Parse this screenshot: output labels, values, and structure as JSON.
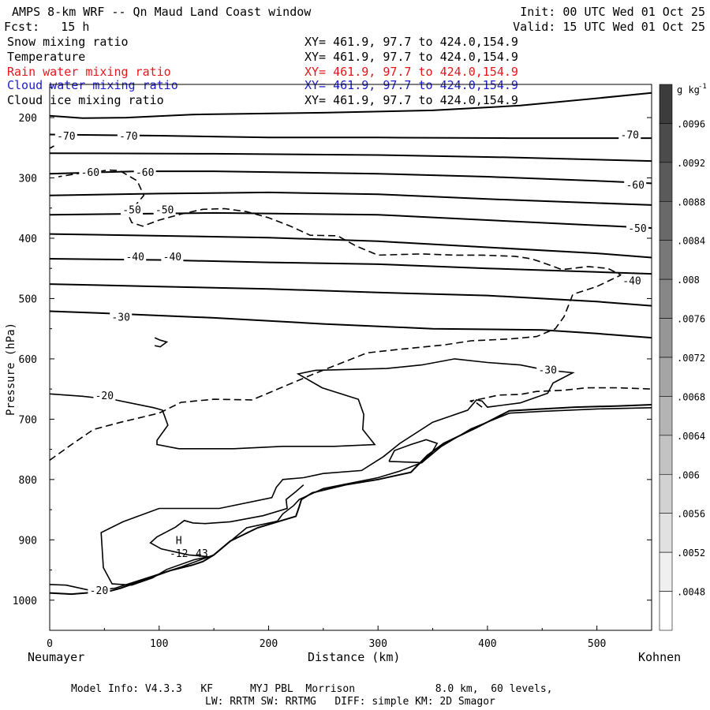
{
  "header": {
    "title": "AMPS 8-km WRF -- Qn Maud Land Coast window",
    "init": "Init: 00 UTC Wed 01 Oct 25",
    "fcst": "Fcst:   15 h",
    "valid": "Valid: 15 UTC Wed 01 Oct 25"
  },
  "fields": [
    {
      "name": "Snow mixing ratio",
      "xy": "XY= 461.9, 97.7 to 424.0,154.9",
      "color": "#000000"
    },
    {
      "name": "Temperature",
      "xy": "XY= 461.9, 97.7 to 424.0,154.9",
      "color": "#000000"
    },
    {
      "name": "Rain water mixing ratio",
      "xy": "XY= 461.9, 97.7 to 424.0,154.9",
      "color": "#e8141c"
    },
    {
      "name": "Cloud water mixing ratio",
      "xy": "XY= 461.9, 97.7 to 424.0,154.9",
      "color": "#1c1cc8"
    },
    {
      "name": "Cloud ice mixing ratio",
      "xy": "XY= 461.9, 97.7 to 424.0,154.9",
      "color": "#000000"
    }
  ],
  "footer": {
    "model_info": "Model Info: V4.3.3   KF      MYJ PBL  Morrison             8.0 km,  60 levels,",
    "model_info2": "LW: RRTM SW: RRTMG   DIFF: simple KM: 2D Smagor"
  },
  "chart_data": {
    "type": "cross-section contour",
    "xlabel": "Distance (km)",
    "ylabel": "Pressure (hPa)",
    "xlim": [
      0,
      550
    ],
    "ylim": [
      1050,
      145
    ],
    "x_ticks": [
      0,
      100,
      200,
      300,
      400,
      500
    ],
    "y_ticks": [
      200,
      300,
      400,
      500,
      600,
      700,
      800,
      900,
      1000
    ],
    "left_end_label": "Neumayer",
    "right_end_label": "Kohnen",
    "colorbar": {
      "unit": "g kg",
      "unit_exp": "-1",
      "ticks": [
        ".0096",
        ".0092",
        ".0088",
        ".0084",
        ".008",
        ".0076",
        ".0072",
        ".0068",
        ".0064",
        ".006",
        ".0056",
        ".0052",
        ".0048"
      ],
      "min": 0.0046,
      "max": 0.0098
    },
    "temperature_isotherms": [
      {
        "points": [
          [
            0,
            197
          ],
          [
            30,
            201
          ],
          [
            70,
            200
          ],
          [
            130,
            195
          ],
          [
            250,
            192
          ],
          [
            350,
            188
          ],
          [
            430,
            180
          ],
          [
            500,
            168
          ],
          [
            550,
            159
          ]
        ]
      },
      {
        "points": [
          [
            0,
            228
          ],
          [
            100,
            230
          ],
          [
            200,
            233
          ],
          [
            300,
            233
          ],
          [
            420,
            234
          ],
          [
            550,
            234
          ]
        ]
      },
      {
        "points": [
          [
            0,
            259
          ],
          [
            150,
            260
          ],
          [
            300,
            262
          ],
          [
            420,
            266
          ],
          [
            550,
            272
          ]
        ]
      },
      {
        "points": [
          [
            0,
            293
          ],
          [
            80,
            289
          ],
          [
            150,
            289
          ],
          [
            300,
            293
          ],
          [
            400,
            298
          ],
          [
            500,
            305
          ],
          [
            550,
            309
          ]
        ]
      },
      {
        "points": [
          [
            0,
            329
          ],
          [
            100,
            326
          ],
          [
            200,
            324
          ],
          [
            300,
            327
          ],
          [
            400,
            335
          ],
          [
            550,
            345
          ]
        ]
      },
      {
        "points": [
          [
            0,
            361
          ],
          [
            150,
            358
          ],
          [
            300,
            361
          ],
          [
            400,
            370
          ],
          [
            550,
            383
          ]
        ]
      },
      {
        "points": [
          [
            0,
            393
          ],
          [
            100,
            396
          ],
          [
            200,
            399
          ],
          [
            300,
            405
          ],
          [
            400,
            415
          ],
          [
            500,
            425
          ],
          [
            550,
            432
          ]
        ]
      },
      {
        "points": [
          [
            0,
            434
          ],
          [
            100,
            436
          ],
          [
            200,
            440
          ],
          [
            300,
            443
          ],
          [
            400,
            450
          ],
          [
            500,
            456
          ],
          [
            550,
            459
          ]
        ]
      },
      {
        "points": [
          [
            0,
            476
          ],
          [
            100,
            480
          ],
          [
            200,
            484
          ],
          [
            300,
            490
          ],
          [
            400,
            495
          ],
          [
            500,
            505
          ],
          [
            550,
            512
          ]
        ]
      },
      {
        "points": [
          [
            0,
            521
          ],
          [
            60,
            525
          ],
          [
            150,
            532
          ],
          [
            250,
            542
          ],
          [
            350,
            550
          ],
          [
            450,
            552
          ],
          [
            500,
            558
          ],
          [
            550,
            565
          ]
        ]
      }
    ],
    "isotherm_labels": [
      {
        "text": "-70",
        "x": 15,
        "p": 230
      },
      {
        "text": "-70",
        "x": 72,
        "p": 230
      },
      {
        "text": "-70",
        "x": 530,
        "p": 228
      },
      {
        "text": "-60",
        "x": 37,
        "p": 290
      },
      {
        "text": "-60",
        "x": 87,
        "p": 290
      },
      {
        "text": "-60",
        "x": 535,
        "p": 311
      },
      {
        "text": "-50",
        "x": 75,
        "p": 352
      },
      {
        "text": "-50",
        "x": 105,
        "p": 352
      },
      {
        "text": "-50",
        "x": 537,
        "p": 383
      },
      {
        "text": "-40",
        "x": 78,
        "p": 430
      },
      {
        "text": "-40",
        "x": 112,
        "p": 430
      },
      {
        "text": "-40",
        "x": 532,
        "p": 470
      },
      {
        "text": "-30",
        "x": 65,
        "p": 530
      },
      {
        "text": "-30",
        "x": 455,
        "p": 618
      },
      {
        "text": "-20",
        "x": 50,
        "p": 660
      },
      {
        "text": "-20",
        "x": 45,
        "p": 983
      }
    ],
    "point_labels": [
      {
        "text": "H",
        "x": 118,
        "p": 900
      },
      {
        "text": "-12",
        "x": 118,
        "p": 922
      },
      {
        "text": "43",
        "x": 139,
        "p": 922
      }
    ],
    "warm_contour": [
      [
        0,
        658
      ],
      [
        30,
        662
      ],
      [
        60,
        668
      ],
      [
        95,
        681
      ],
      [
        103,
        685
      ],
      [
        108,
        710
      ],
      [
        98,
        735
      ],
      [
        98,
        742
      ],
      [
        118,
        749
      ],
      [
        168,
        749
      ],
      [
        213,
        745
      ],
      [
        260,
        745
      ],
      [
        297,
        742
      ],
      [
        286,
        717
      ],
      [
        287,
        692
      ],
      [
        282,
        667
      ],
      [
        249,
        648
      ],
      [
        227,
        625
      ],
      [
        243,
        619
      ],
      [
        308,
        616
      ],
      [
        340,
        610
      ],
      [
        370,
        600
      ],
      [
        400,
        606
      ],
      [
        430,
        610
      ],
      [
        452,
        618
      ],
      [
        478,
        623
      ],
      [
        460,
        640
      ],
      [
        455,
        657
      ],
      [
        430,
        673
      ],
      [
        400,
        680
      ],
      [
        395,
        670
      ],
      [
        390,
        668
      ],
      [
        382,
        685
      ],
      [
        350,
        705
      ],
      [
        320,
        740
      ],
      [
        305,
        762
      ],
      [
        285,
        785
      ],
      [
        250,
        790
      ],
      [
        232,
        797
      ],
      [
        213,
        800
      ],
      [
        207,
        813
      ],
      [
        203,
        830
      ],
      [
        155,
        848
      ],
      [
        100,
        848
      ],
      [
        67,
        870
      ],
      [
        47,
        888
      ],
      [
        49,
        946
      ],
      [
        57,
        973
      ],
      [
        75,
        975
      ],
      [
        94,
        963
      ],
      [
        107,
        949
      ],
      [
        132,
        933
      ],
      [
        145,
        928
      ],
      [
        127,
        925
      ],
      [
        102,
        915
      ],
      [
        92,
        905
      ],
      [
        98,
        895
      ],
      [
        115,
        879
      ],
      [
        123,
        868
      ],
      [
        131,
        872
      ],
      [
        142,
        873
      ],
      [
        165,
        870
      ],
      [
        195,
        860
      ],
      [
        217,
        848
      ],
      [
        216,
        833
      ],
      [
        225,
        820
      ],
      [
        232,
        809
      ]
    ],
    "surface_line": [
      [
        0,
        988
      ],
      [
        20,
        990
      ],
      [
        55,
        985
      ],
      [
        65,
        980
      ],
      [
        110,
        951
      ],
      [
        130,
        942
      ],
      [
        140,
        936
      ],
      [
        150,
        925
      ],
      [
        165,
        902
      ],
      [
        190,
        880
      ],
      [
        225,
        861
      ],
      [
        228,
        845
      ],
      [
        230,
        833
      ],
      [
        240,
        822
      ],
      [
        270,
        809
      ],
      [
        300,
        800
      ],
      [
        330,
        788
      ],
      [
        345,
        760
      ],
      [
        360,
        740
      ],
      [
        390,
        714
      ],
      [
        420,
        686
      ],
      [
        450,
        683
      ],
      [
        480,
        680
      ],
      [
        520,
        678
      ],
      [
        550,
        676
      ]
    ],
    "surface_line2": [
      [
        0,
        974
      ],
      [
        15,
        975
      ],
      [
        40,
        985
      ],
      [
        60,
        980
      ],
      [
        120,
        945
      ],
      [
        150,
        925
      ],
      [
        180,
        880
      ],
      [
        208,
        869
      ],
      [
        213,
        857
      ],
      [
        223,
        843
      ],
      [
        228,
        833
      ],
      [
        250,
        815
      ],
      [
        300,
        797
      ],
      [
        320,
        786
      ],
      [
        340,
        772
      ],
      [
        358,
        745
      ],
      [
        385,
        716
      ],
      [
        420,
        690
      ],
      [
        450,
        687
      ],
      [
        500,
        683
      ],
      [
        550,
        681
      ]
    ],
    "small_contour": [
      [
        310,
        770
      ],
      [
        340,
        772
      ],
      [
        349,
        756
      ],
      [
        354,
        740
      ],
      [
        344,
        734
      ],
      [
        330,
        742
      ],
      [
        315,
        752
      ],
      [
        310,
        770
      ]
    ],
    "tiny_contour": [
      [
        96,
        565
      ],
      [
        101,
        569
      ],
      [
        107,
        572
      ],
      [
        101,
        580
      ],
      [
        96,
        578
      ]
    ],
    "ice_cloud_dashed": [
      [
        [
          0,
          768
        ],
        [
          20,
          742
        ],
        [
          40,
          717
        ],
        [
          65,
          705
        ],
        [
          100,
          690
        ],
        [
          120,
          672
        ],
        [
          150,
          667
        ],
        [
          185,
          668
        ],
        [
          215,
          645
        ],
        [
          240,
          626
        ],
        [
          262,
          610
        ],
        [
          290,
          590
        ],
        [
          320,
          584
        ],
        [
          360,
          577
        ],
        [
          385,
          570
        ],
        [
          420,
          567
        ],
        [
          445,
          563
        ],
        [
          462,
          550
        ],
        [
          470,
          530
        ],
        [
          478,
          493
        ],
        [
          500,
          480
        ],
        [
          522,
          461
        ],
        [
          510,
          450
        ],
        [
          492,
          447
        ],
        [
          468,
          452
        ],
        [
          450,
          440
        ],
        [
          440,
          434
        ],
        [
          425,
          430
        ],
        [
          395,
          428
        ],
        [
          370,
          428
        ],
        [
          340,
          426
        ],
        [
          300,
          428
        ],
        [
          280,
          413
        ],
        [
          263,
          396
        ],
        [
          238,
          395
        ],
        [
          220,
          380
        ],
        [
          200,
          366
        ],
        [
          180,
          356
        ],
        [
          160,
          351
        ],
        [
          140,
          352
        ],
        [
          120,
          360
        ],
        [
          100,
          370
        ],
        [
          85,
          380
        ],
        [
          75,
          374
        ],
        [
          70,
          354
        ],
        [
          78,
          346
        ],
        [
          86,
          329
        ],
        [
          80,
          305
        ],
        [
          64,
          288
        ],
        [
          54,
          287
        ],
        [
          40,
          290
        ],
        [
          25,
          293
        ],
        [
          15,
          296
        ],
        [
          8,
          298
        ]
      ],
      [
        [
          0,
          251
        ],
        [
          4,
          247
        ]
      ],
      [
        [
          395,
          680
        ],
        [
          390,
          673
        ],
        [
          384,
          670
        ],
        [
          398,
          665
        ],
        [
          410,
          660
        ],
        [
          430,
          659
        ],
        [
          445,
          654
        ],
        [
          470,
          652
        ],
        [
          490,
          648
        ],
        [
          520,
          648
        ],
        [
          550,
          650
        ]
      ]
    ]
  }
}
